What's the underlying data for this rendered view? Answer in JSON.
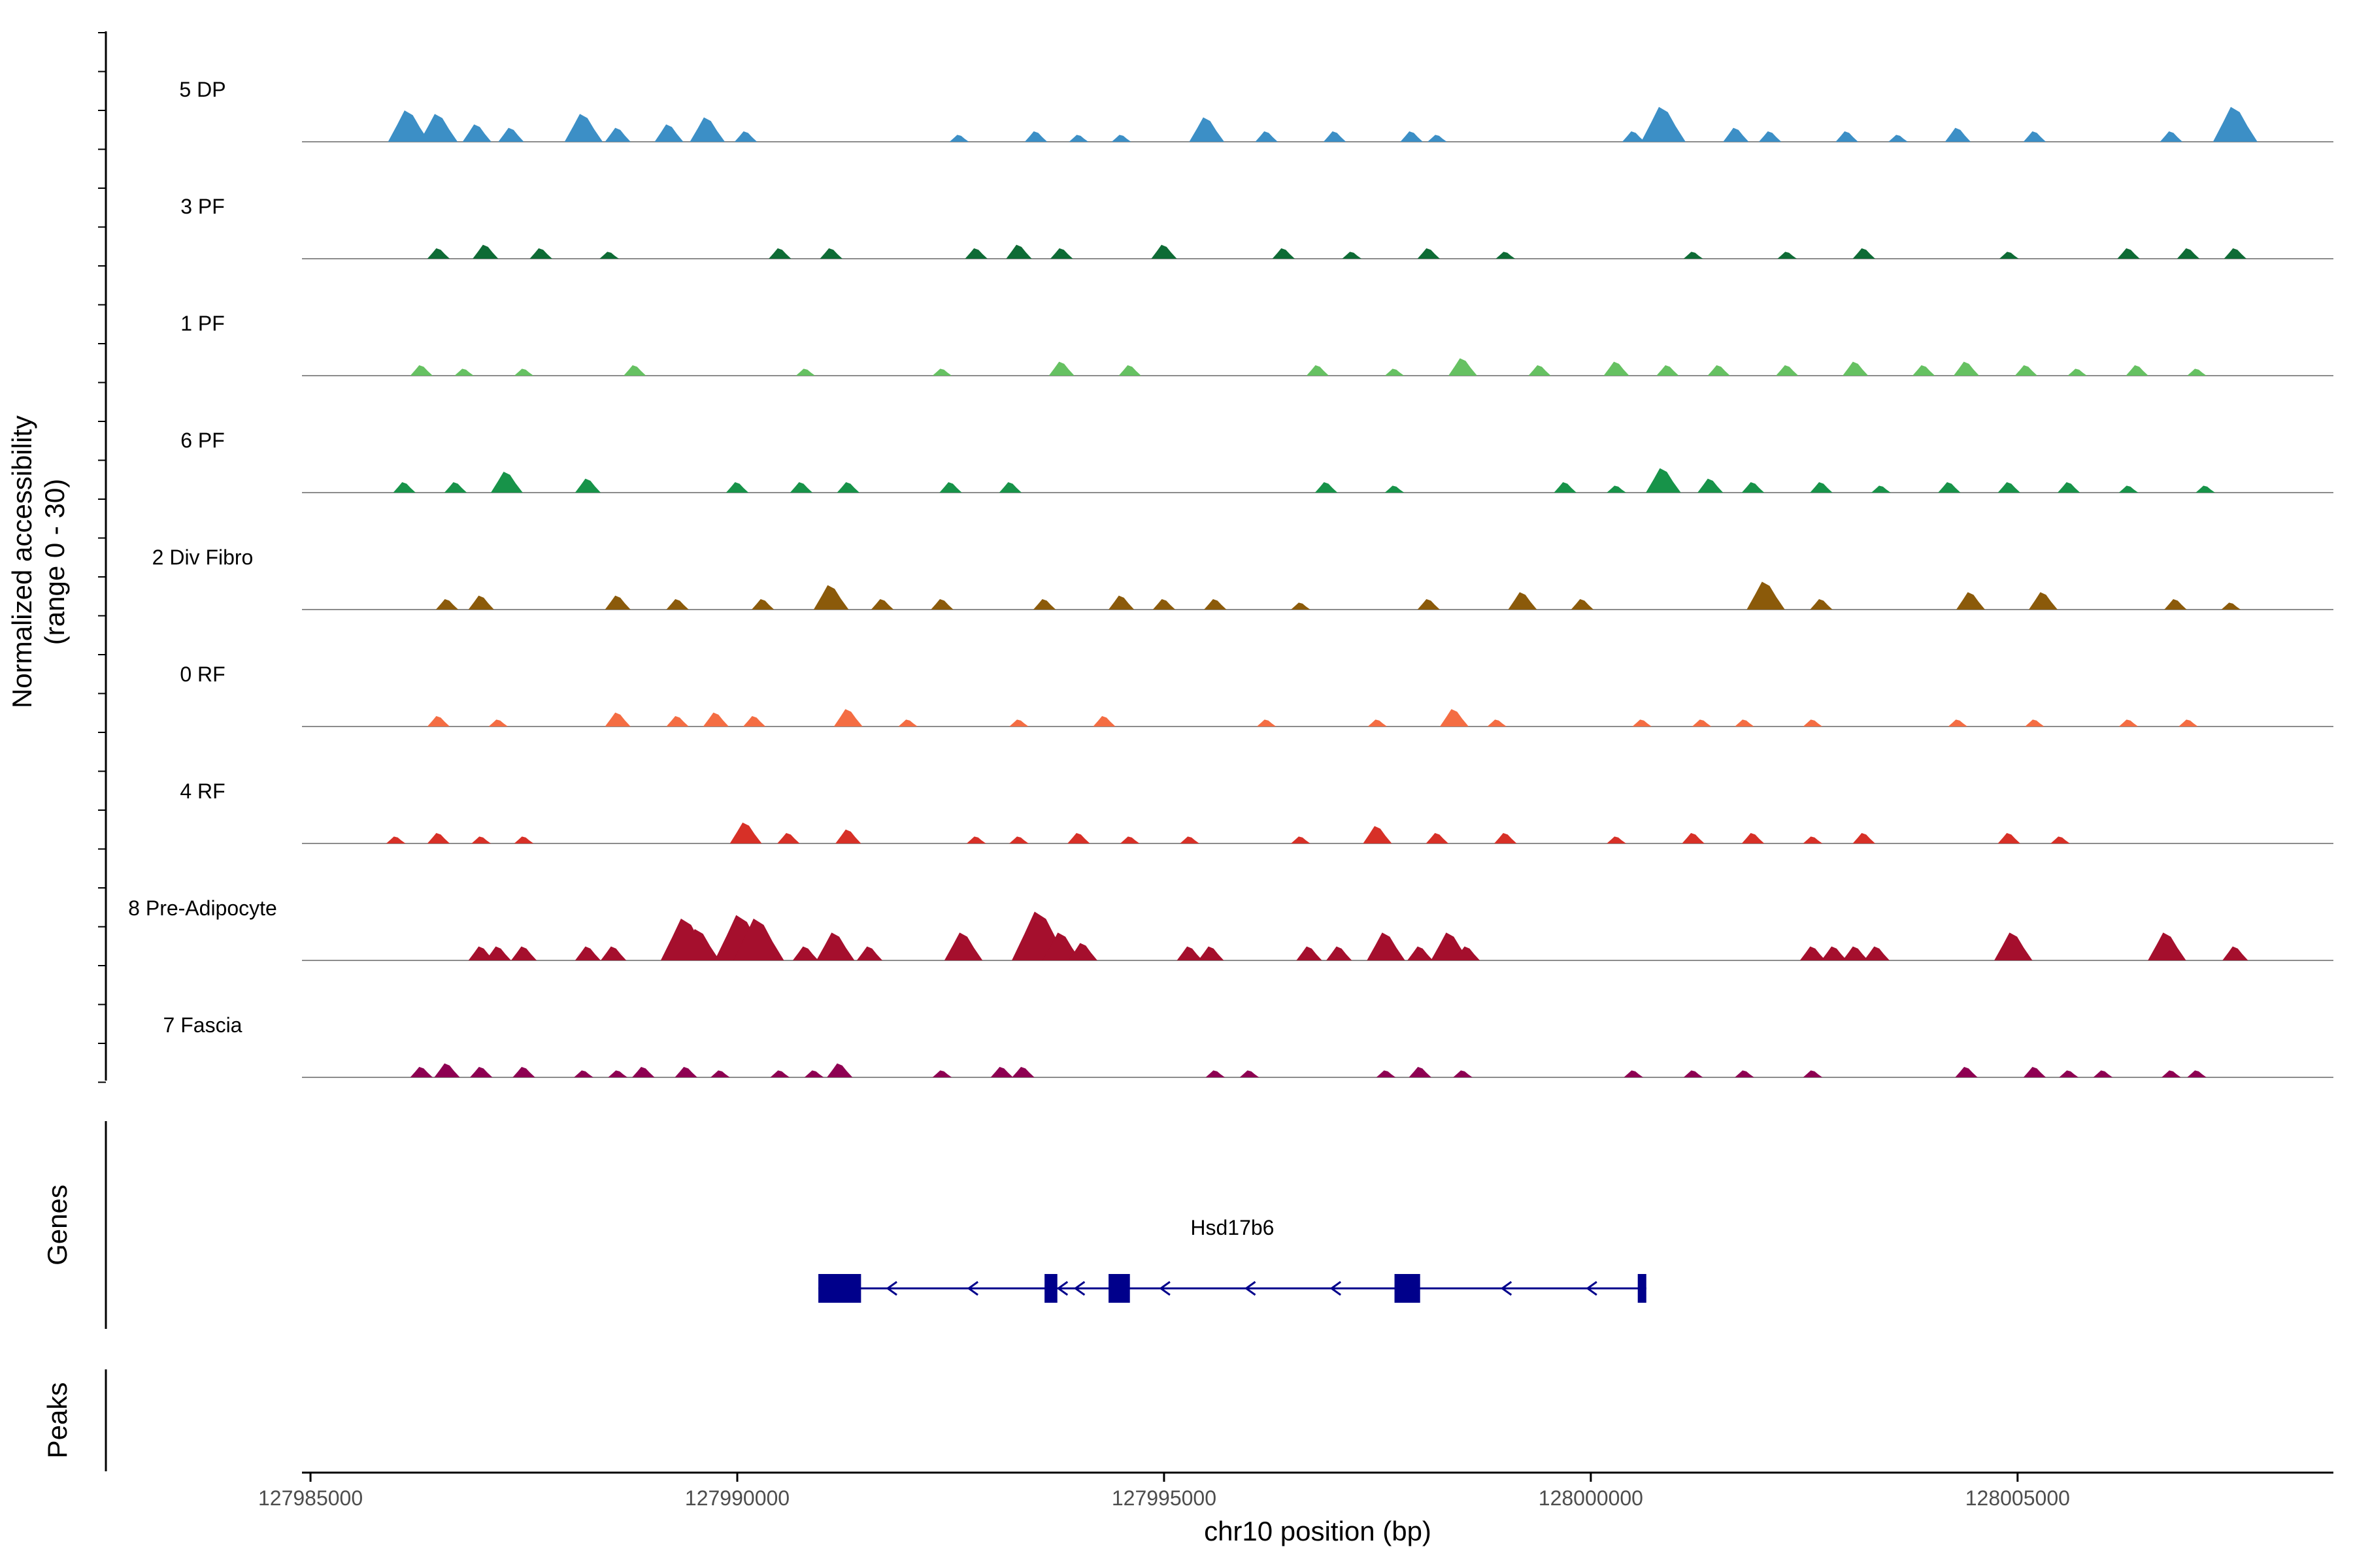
{
  "chart_data": {
    "type": "area",
    "title": "",
    "ylabel_line1": "Normalized accessibility",
    "ylabel_line2": "(range 0 - 30)",
    "y_range": [
      0,
      30
    ],
    "xlabel": "chr10 position (bp)",
    "xlim": [
      127984900,
      128008700
    ],
    "x_ticks": [
      127985000,
      127990000,
      127995000,
      128000000,
      128005000
    ],
    "x_tick_labels": [
      "127985000",
      "127990000",
      "127995000",
      "128000000",
      "128005000"
    ],
    "tracks": [
      {
        "name": "5 DP",
        "color": "#3C8FC6",
        "peaks": [
          [
            127986150,
            9
          ],
          [
            127986500,
            8
          ],
          [
            127986950,
            5
          ],
          [
            127987350,
            4
          ],
          [
            127988200,
            8
          ],
          [
            127988600,
            4
          ],
          [
            127989200,
            5
          ],
          [
            127989650,
            7
          ],
          [
            127990100,
            3
          ],
          [
            127992600,
            2
          ],
          [
            127993500,
            3
          ],
          [
            127994000,
            2
          ],
          [
            127994500,
            2
          ],
          [
            127995500,
            7
          ],
          [
            127996200,
            3
          ],
          [
            127997000,
            3
          ],
          [
            127997900,
            3
          ],
          [
            127998200,
            2
          ],
          [
            128000500,
            3
          ],
          [
            128000850,
            10
          ],
          [
            128001700,
            4
          ],
          [
            128002100,
            3
          ],
          [
            128003000,
            3
          ],
          [
            128003600,
            2
          ],
          [
            128004300,
            4
          ],
          [
            128005200,
            3
          ],
          [
            128006800,
            3
          ],
          [
            128007550,
            10
          ]
        ]
      },
      {
        "name": "3 PF",
        "color": "#0E6B35",
        "peaks": [
          [
            127986500,
            3
          ],
          [
            127987050,
            4
          ],
          [
            127987700,
            3
          ],
          [
            127988500,
            2
          ],
          [
            127990500,
            3
          ],
          [
            127991100,
            3
          ],
          [
            127992800,
            3
          ],
          [
            127993300,
            4
          ],
          [
            127993800,
            3
          ],
          [
            127995000,
            4
          ],
          [
            127996400,
            3
          ],
          [
            127997200,
            2
          ],
          [
            127998100,
            3
          ],
          [
            127999000,
            2
          ],
          [
            128001200,
            2
          ],
          [
            128002300,
            2
          ],
          [
            128003200,
            3
          ],
          [
            128004900,
            2
          ],
          [
            128006300,
            3
          ],
          [
            128007000,
            3
          ],
          [
            128007550,
            3
          ]
        ]
      },
      {
        "name": "1 PF",
        "color": "#66C162",
        "peaks": [
          [
            127986300,
            3
          ],
          [
            127986800,
            2
          ],
          [
            127987500,
            2
          ],
          [
            127988800,
            3
          ],
          [
            127990800,
            2
          ],
          [
            127992400,
            2
          ],
          [
            127993800,
            4
          ],
          [
            127994600,
            3
          ],
          [
            127996800,
            3
          ],
          [
            127997700,
            2
          ],
          [
            127998500,
            5
          ],
          [
            127999400,
            3
          ],
          [
            128000300,
            4
          ],
          [
            128000900,
            3
          ],
          [
            128001500,
            3
          ],
          [
            128002300,
            3
          ],
          [
            128003100,
            4
          ],
          [
            128003900,
            3
          ],
          [
            128004400,
            4
          ],
          [
            128005100,
            3
          ],
          [
            128005700,
            2
          ],
          [
            128006400,
            3
          ],
          [
            128007100,
            2
          ]
        ]
      },
      {
        "name": "6 PF",
        "color": "#179349",
        "peaks": [
          [
            127986100,
            3
          ],
          [
            127986700,
            3
          ],
          [
            127987300,
            6
          ],
          [
            127988250,
            4
          ],
          [
            127990000,
            3
          ],
          [
            127990750,
            3
          ],
          [
            127991300,
            3
          ],
          [
            127992500,
            3
          ],
          [
            127993200,
            3
          ],
          [
            127996900,
            3
          ],
          [
            127997700,
            2
          ],
          [
            127999700,
            3
          ],
          [
            128000300,
            2
          ],
          [
            128000850,
            7
          ],
          [
            128001400,
            4
          ],
          [
            128001900,
            3
          ],
          [
            128002700,
            3
          ],
          [
            128003400,
            2
          ],
          [
            128004200,
            3
          ],
          [
            128004900,
            3
          ],
          [
            128005600,
            3
          ],
          [
            128006300,
            2
          ],
          [
            128007200,
            2
          ]
        ]
      },
      {
        "name": "2 Div Fibro",
        "color": "#8B5A0A",
        "peaks": [
          [
            127986600,
            3
          ],
          [
            127987000,
            4
          ],
          [
            127988600,
            4
          ],
          [
            127989300,
            3
          ],
          [
            127990300,
            3
          ],
          [
            127991100,
            7
          ],
          [
            127991700,
            3
          ],
          [
            127992400,
            3
          ],
          [
            127993600,
            3
          ],
          [
            127994500,
            4
          ],
          [
            127995000,
            3
          ],
          [
            127995600,
            3
          ],
          [
            127996600,
            2
          ],
          [
            127998100,
            3
          ],
          [
            127999200,
            5
          ],
          [
            127999900,
            3
          ],
          [
            128002050,
            8
          ],
          [
            128002700,
            3
          ],
          [
            128004450,
            5
          ],
          [
            128005300,
            5
          ],
          [
            128006850,
            3
          ],
          [
            128007500,
            2
          ]
        ]
      },
      {
        "name": "0 RF",
        "color": "#F46D43",
        "peaks": [
          [
            127986500,
            3
          ],
          [
            127987200,
            2
          ],
          [
            127988600,
            4
          ],
          [
            127989300,
            3
          ],
          [
            127989750,
            4
          ],
          [
            127990200,
            3
          ],
          [
            127991300,
            5
          ],
          [
            127992000,
            2
          ],
          [
            127993300,
            2
          ],
          [
            127994300,
            3
          ],
          [
            127996200,
            2
          ],
          [
            127997500,
            2
          ],
          [
            127998400,
            5
          ],
          [
            127998900,
            2
          ],
          [
            128000600,
            2
          ],
          [
            128001300,
            2
          ],
          [
            128001800,
            2
          ],
          [
            128002600,
            2
          ],
          [
            128004300,
            2
          ],
          [
            128005200,
            2
          ],
          [
            128006300,
            2
          ],
          [
            128007000,
            2
          ]
        ]
      },
      {
        "name": "4 RF",
        "color": "#D73027",
        "peaks": [
          [
            127986000,
            2
          ],
          [
            127986500,
            3
          ],
          [
            127987000,
            2
          ],
          [
            127987500,
            2
          ],
          [
            127990100,
            6
          ],
          [
            127990600,
            3
          ],
          [
            127991300,
            4
          ],
          [
            127992800,
            2
          ],
          [
            127993300,
            2
          ],
          [
            127994000,
            3
          ],
          [
            127994600,
            2
          ],
          [
            127995300,
            2
          ],
          [
            127996600,
            2
          ],
          [
            127997500,
            5
          ],
          [
            127998200,
            3
          ],
          [
            127999000,
            3
          ],
          [
            128000300,
            2
          ],
          [
            128001200,
            3
          ],
          [
            128001900,
            3
          ],
          [
            128002600,
            2
          ],
          [
            128003200,
            3
          ],
          [
            128004900,
            3
          ],
          [
            128005500,
            2
          ]
        ]
      },
      {
        "name": "8 Pre-Adipocyte",
        "color": "#A50F2D",
        "peaks": [
          [
            127987000,
            4
          ],
          [
            127987200,
            4
          ],
          [
            127987500,
            4
          ],
          [
            127988250,
            4
          ],
          [
            127988550,
            4
          ],
          [
            127989400,
            12
          ],
          [
            127989550,
            9
          ],
          [
            127990050,
            13
          ],
          [
            127990250,
            12
          ],
          [
            127990800,
            4
          ],
          [
            127991150,
            8
          ],
          [
            127991550,
            4
          ],
          [
            127992650,
            8
          ],
          [
            127993550,
            14
          ],
          [
            127993800,
            8
          ],
          [
            127994050,
            5
          ],
          [
            127995300,
            4
          ],
          [
            127995550,
            4
          ],
          [
            127996700,
            4
          ],
          [
            127997050,
            4
          ],
          [
            127997600,
            8
          ],
          [
            127998000,
            4
          ],
          [
            127998350,
            8
          ],
          [
            127998550,
            4
          ],
          [
            128002600,
            4
          ],
          [
            128002850,
            4
          ],
          [
            128003100,
            4
          ],
          [
            128003350,
            4
          ],
          [
            128004950,
            8
          ],
          [
            128006750,
            8
          ],
          [
            128007550,
            4
          ]
        ]
      },
      {
        "name": "7 Fascia",
        "color": "#8E0152",
        "peaks": [
          [
            127986300,
            3
          ],
          [
            127986600,
            4
          ],
          [
            127987000,
            3
          ],
          [
            127987500,
            3
          ],
          [
            127988200,
            2
          ],
          [
            127988600,
            2
          ],
          [
            127988900,
            3
          ],
          [
            127989400,
            3
          ],
          [
            127989800,
            2
          ],
          [
            127990500,
            2
          ],
          [
            127990900,
            2
          ],
          [
            127991200,
            4
          ],
          [
            127992400,
            2
          ],
          [
            127993100,
            3
          ],
          [
            127993350,
            3
          ],
          [
            127995600,
            2
          ],
          [
            127996000,
            2
          ],
          [
            127997600,
            2
          ],
          [
            127998000,
            3
          ],
          [
            127998500,
            2
          ],
          [
            128000500,
            2
          ],
          [
            128001200,
            2
          ],
          [
            128001800,
            2
          ],
          [
            128002600,
            2
          ],
          [
            128004400,
            3
          ],
          [
            128005200,
            3
          ],
          [
            128005600,
            2
          ],
          [
            128006000,
            2
          ],
          [
            128006800,
            2
          ],
          [
            128007100,
            2
          ]
        ]
      }
    ],
    "genes_panel_label": "Genes",
    "peaks_panel_label": "Peaks",
    "gene": {
      "name": "Hsd17b6",
      "color": "#00008B",
      "strand": "-",
      "start": 127990950,
      "end": 128000650,
      "exons": [
        [
          127990950,
          127991450
        ],
        [
          127993600,
          127993750
        ],
        [
          127994350,
          127994600
        ],
        [
          127997700,
          127998000
        ],
        [
          128000550,
          128000650
        ]
      ]
    }
  }
}
